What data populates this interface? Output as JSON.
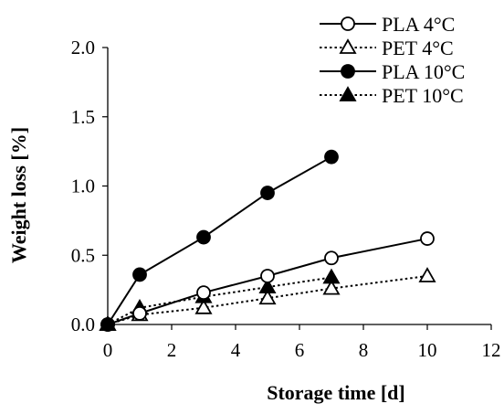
{
  "chart_data": {
    "type": "line",
    "xlabel": "Storage time [d]",
    "ylabel": "Weight loss [%]",
    "xlim": [
      0,
      12
    ],
    "ylim": [
      0,
      2.0
    ],
    "xticks": [
      "0",
      "2",
      "4",
      "6",
      "8",
      "10",
      "12"
    ],
    "yticks": [
      "0.0",
      "0.5",
      "1.0",
      "1.5",
      "2.0"
    ],
    "grid": false,
    "legend_position": "top-right",
    "series": [
      {
        "name": "PLA 4°C",
        "marker": "open-circle",
        "line": "solid",
        "x": [
          0,
          1,
          3,
          5,
          7,
          10
        ],
        "y": [
          0.0,
          0.08,
          0.23,
          0.35,
          0.48,
          0.62
        ]
      },
      {
        "name": "PET 4°C",
        "marker": "open-triangle",
        "line": "dotted",
        "x": [
          0,
          1,
          3,
          5,
          7,
          10
        ],
        "y": [
          0.0,
          0.07,
          0.12,
          0.19,
          0.26,
          0.35
        ]
      },
      {
        "name": "PLA 10°C",
        "marker": "filled-circle",
        "line": "solid",
        "x": [
          0,
          1,
          3,
          5,
          7
        ],
        "y": [
          0.0,
          0.36,
          0.63,
          0.95,
          1.21
        ]
      },
      {
        "name": "PET 10°C",
        "marker": "filled-triangle",
        "line": "dotted",
        "x": [
          0,
          1,
          3,
          5,
          7
        ],
        "y": [
          0.0,
          0.12,
          0.2,
          0.27,
          0.34
        ]
      }
    ]
  }
}
